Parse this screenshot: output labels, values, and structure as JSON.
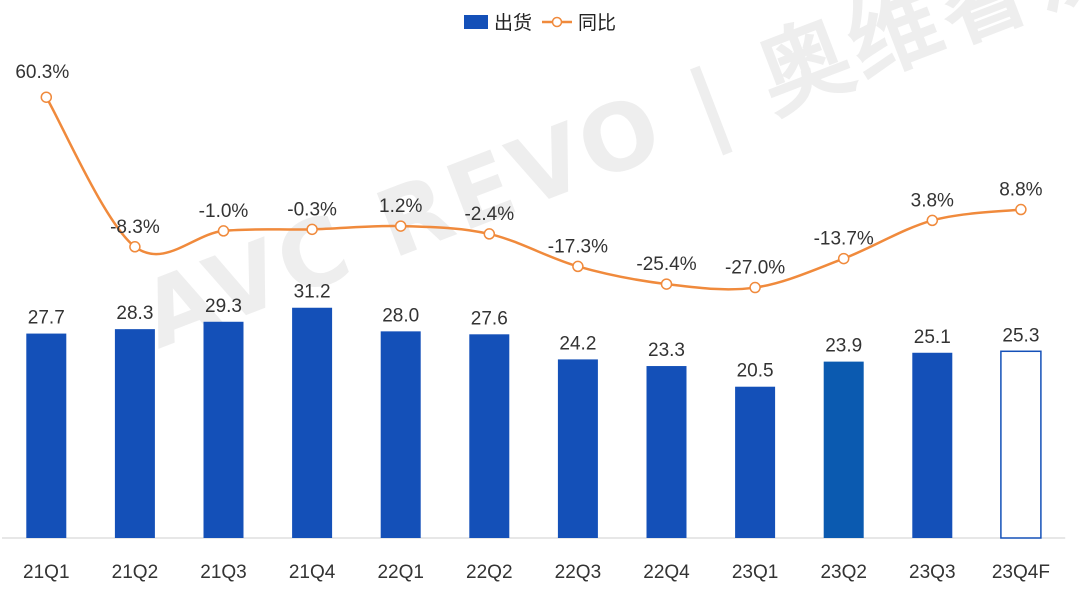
{
  "chart_data": {
    "type": "bar",
    "categories": [
      "21Q1",
      "21Q2",
      "21Q3",
      "21Q4",
      "22Q1",
      "22Q2",
      "22Q3",
      "22Q4",
      "23Q1",
      "23Q2",
      "23Q3",
      "23Q4F"
    ],
    "series": [
      {
        "name": "出货",
        "type": "bar",
        "values": [
          27.7,
          28.3,
          29.3,
          31.2,
          28.0,
          27.6,
          24.2,
          23.3,
          20.5,
          23.9,
          25.1,
          25.3
        ],
        "labels": [
          "27.7",
          "28.3",
          "29.3",
          "31.2",
          "28.0",
          "27.6",
          "24.2",
          "23.3",
          "20.5",
          "23.9",
          "25.1",
          "25.3"
        ],
        "color": "#1450b8",
        "forecast_last": true
      },
      {
        "name": "同比",
        "type": "line",
        "values": [
          60.3,
          -8.3,
          -1.0,
          -0.3,
          1.2,
          -2.4,
          -17.3,
          -25.4,
          -27.0,
          -13.7,
          3.8,
          8.8
        ],
        "labels": [
          "60.3%",
          "-8.3%",
          "-1.0%",
          "-0.3%",
          "1.2%",
          "-2.4%",
          "-17.3%",
          "-25.4%",
          "-27.0%",
          "-13.7%",
          "3.8%",
          "8.8%"
        ],
        "color": "#f08a3c"
      }
    ],
    "legend_position": "top-center",
    "grid": false
  },
  "watermark": "AVC REVO | 奥维睿沃"
}
